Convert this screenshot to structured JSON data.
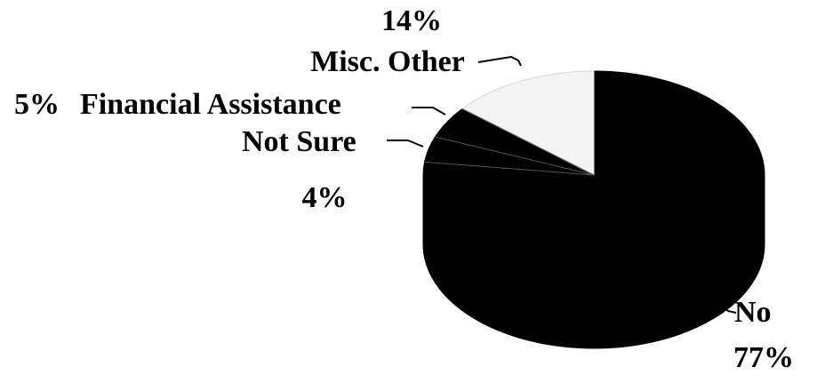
{
  "chart_data": {
    "type": "pie",
    "title": "",
    "slices": [
      {
        "label": "No",
        "value": 77,
        "percent_label": "77%",
        "color": "#000000"
      },
      {
        "label": "Misc. Other",
        "value": 14,
        "percent_label": "14%",
        "color": "#f3f3f3"
      },
      {
        "label": "Financial Assistance",
        "value": 5,
        "percent_label": "5%",
        "color": "#000000"
      },
      {
        "label": "Not Sure",
        "value": 4,
        "percent_label": "4%",
        "color": "#000000"
      }
    ],
    "style": "3d-tilted",
    "legend": "none"
  }
}
